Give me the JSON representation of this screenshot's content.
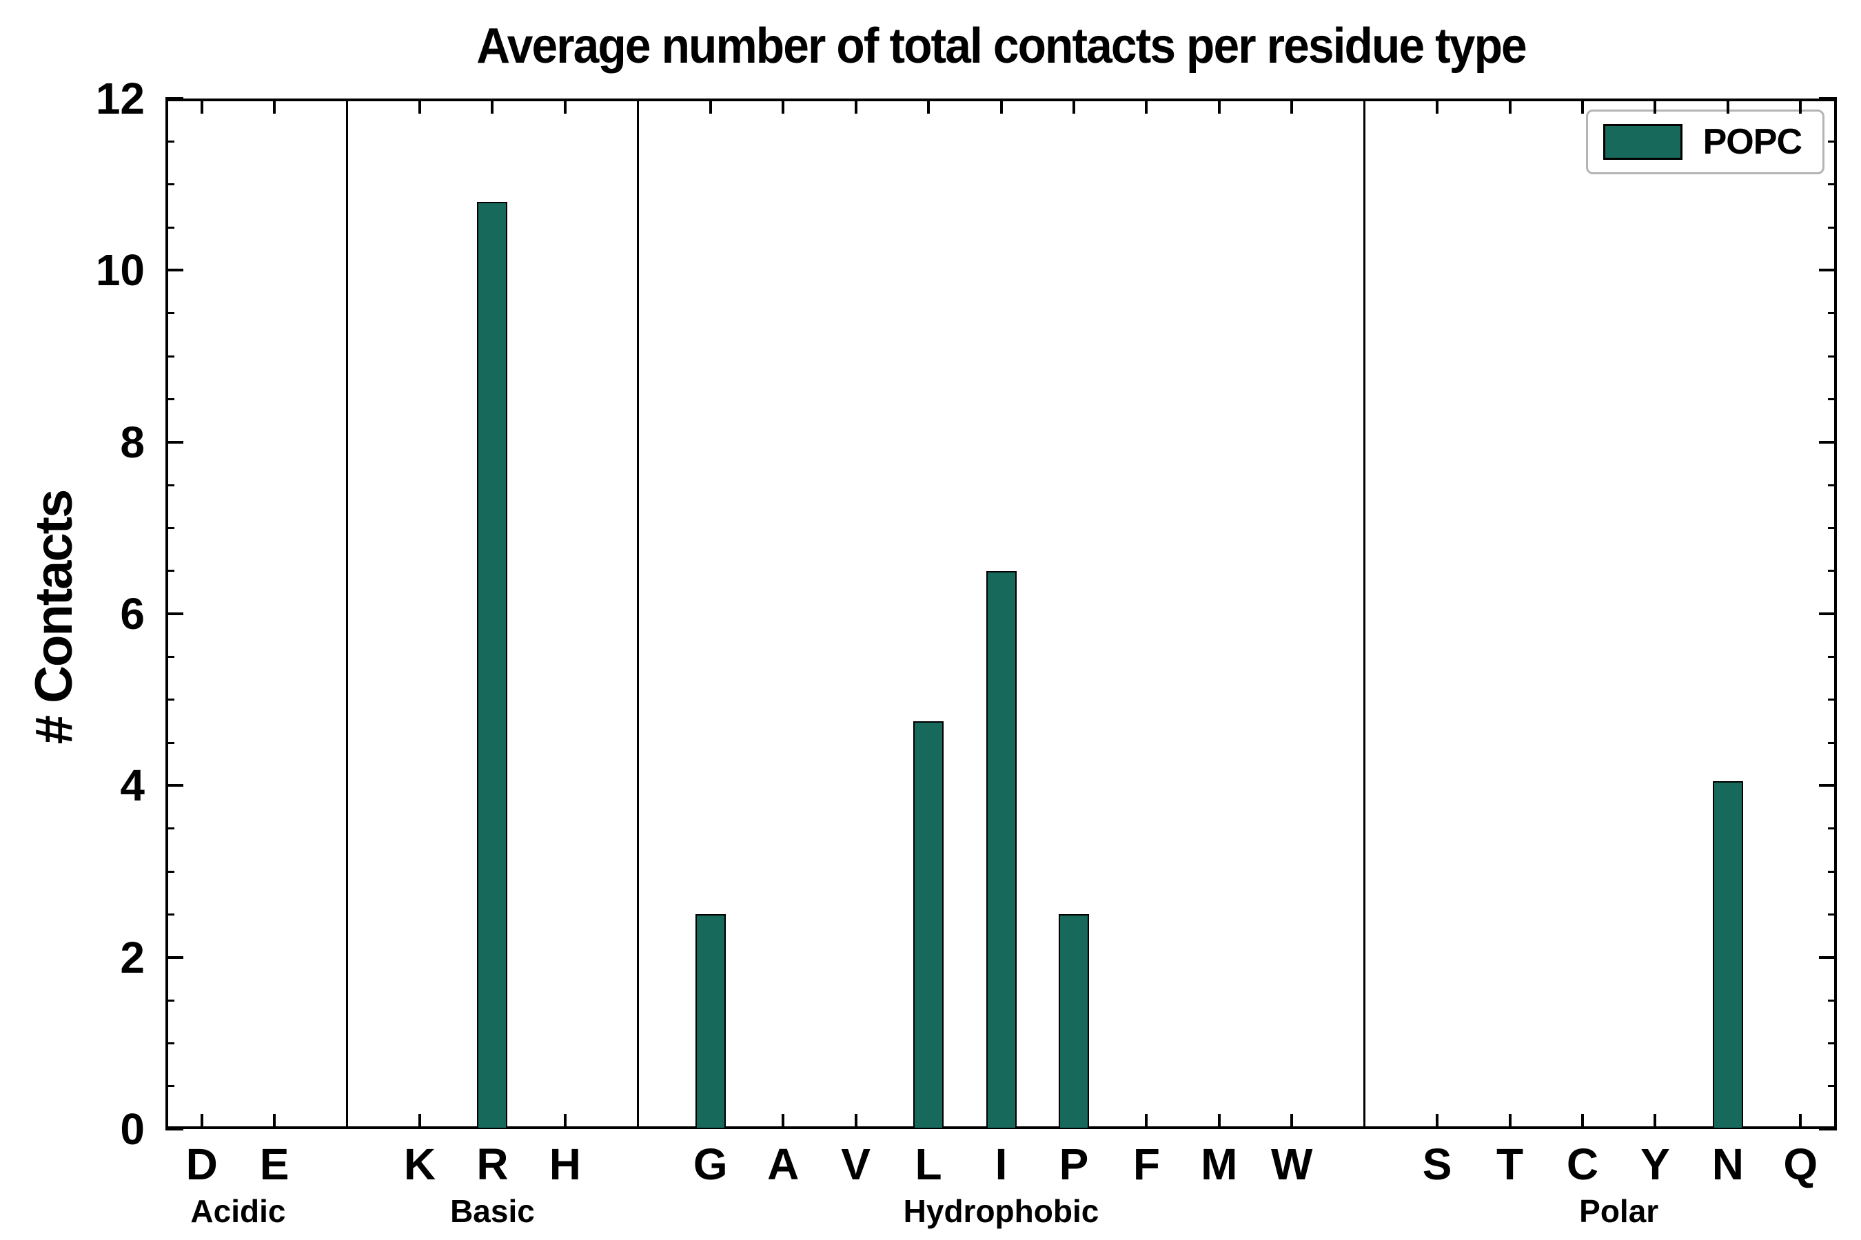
{
  "chart_data": {
    "type": "bar",
    "title": "Average number of total contacts per residue type",
    "ylabel": "# Contacts",
    "xlabel": "",
    "ylim": [
      0,
      12
    ],
    "yticks": [
      0,
      2,
      4,
      6,
      8,
      10,
      12
    ],
    "grid": false,
    "bar_color": "#176A5B",
    "bar_edge_color": "#000000",
    "legend": [
      "POPC"
    ],
    "legend_position": "upper right",
    "groups": [
      {
        "label": "Acidic",
        "categories": [
          "D",
          "E"
        ],
        "values": [
          0,
          0
        ]
      },
      {
        "label": "Basic",
        "categories": [
          "K",
          "R",
          "H"
        ],
        "values": [
          0,
          10.8,
          0
        ]
      },
      {
        "label": "Hydrophobic",
        "categories": [
          "G",
          "A",
          "V",
          "L",
          "I",
          "P",
          "F",
          "M",
          "W"
        ],
        "values": [
          2.5,
          0,
          0,
          4.75,
          6.5,
          2.5,
          0,
          0,
          0
        ]
      },
      {
        "label": "Polar",
        "categories": [
          "S",
          "T",
          "C",
          "Y",
          "N",
          "Q"
        ],
        "values": [
          0,
          0,
          0,
          0,
          4.05,
          0
        ]
      }
    ]
  }
}
